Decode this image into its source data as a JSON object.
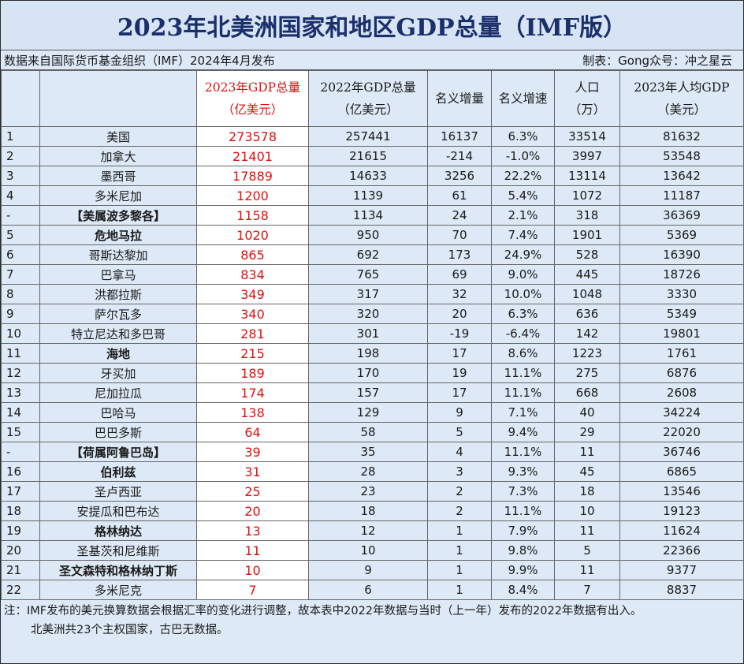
{
  "title": "2023年北美洲国家和地区GDP总量（IMF版）",
  "source": "数据来自国际货币基金组织（IMF）2024年4月发布",
  "credit": "制表：Gong众号：冲之星云",
  "headers": {
    "gdp2023_a": "2023年GDP总量",
    "gdp2023_b": "（亿美元）",
    "gdp2022_a": "2022年GDP总量",
    "gdp2022_b": "（亿美元）",
    "increase": "名义增量",
    "growth": "名义增速",
    "pop_a": "人口",
    "pop_b": "（万）",
    "percap_a": "2023年人均GDP",
    "percap_b": "（美元）"
  },
  "rows": [
    {
      "rank": "1",
      "name": "美国",
      "gdp2023": "273578",
      "gdp2022": "257441",
      "inc": "16137",
      "rate": "6.3%",
      "pop": "33514",
      "percap": "81632",
      "bold": false
    },
    {
      "rank": "2",
      "name": "加拿大",
      "gdp2023": "21401",
      "gdp2022": "21615",
      "inc": "-214",
      "rate": "-1.0%",
      "pop": "3997",
      "percap": "53548",
      "bold": false
    },
    {
      "rank": "3",
      "name": "墨西哥",
      "gdp2023": "17889",
      "gdp2022": "14633",
      "inc": "3256",
      "rate": "22.2%",
      "pop": "13114",
      "percap": "13642",
      "bold": false
    },
    {
      "rank": "4",
      "name": "多米尼加",
      "gdp2023": "1200",
      "gdp2022": "1139",
      "inc": "61",
      "rate": "5.4%",
      "pop": "1072",
      "percap": "11187",
      "bold": false
    },
    {
      "rank": "-",
      "name": "【美属波多黎各】",
      "gdp2023": "1158",
      "gdp2022": "1134",
      "inc": "24",
      "rate": "2.1%",
      "pop": "318",
      "percap": "36369",
      "bold": true
    },
    {
      "rank": "5",
      "name": "危地马拉",
      "gdp2023": "1020",
      "gdp2022": "950",
      "inc": "70",
      "rate": "7.4%",
      "pop": "1901",
      "percap": "5369",
      "bold": true
    },
    {
      "rank": "6",
      "name": "哥斯达黎加",
      "gdp2023": "865",
      "gdp2022": "692",
      "inc": "173",
      "rate": "24.9%",
      "pop": "528",
      "percap": "16390",
      "bold": false
    },
    {
      "rank": "7",
      "name": "巴拿马",
      "gdp2023": "834",
      "gdp2022": "765",
      "inc": "69",
      "rate": "9.0%",
      "pop": "445",
      "percap": "18726",
      "bold": false
    },
    {
      "rank": "8",
      "name": "洪都拉斯",
      "gdp2023": "349",
      "gdp2022": "317",
      "inc": "32",
      "rate": "10.0%",
      "pop": "1048",
      "percap": "3330",
      "bold": false
    },
    {
      "rank": "9",
      "name": "萨尔瓦多",
      "gdp2023": "340",
      "gdp2022": "320",
      "inc": "20",
      "rate": "6.3%",
      "pop": "636",
      "percap": "5349",
      "bold": false
    },
    {
      "rank": "10",
      "name": "特立尼达和多巴哥",
      "gdp2023": "281",
      "gdp2022": "301",
      "inc": "-19",
      "rate": "-6.4%",
      "pop": "142",
      "percap": "19801",
      "bold": false
    },
    {
      "rank": "11",
      "name": "海地",
      "gdp2023": "215",
      "gdp2022": "198",
      "inc": "17",
      "rate": "8.6%",
      "pop": "1223",
      "percap": "1761",
      "bold": true
    },
    {
      "rank": "12",
      "name": "牙买加",
      "gdp2023": "189",
      "gdp2022": "170",
      "inc": "19",
      "rate": "11.1%",
      "pop": "275",
      "percap": "6876",
      "bold": false
    },
    {
      "rank": "13",
      "name": "尼加拉瓜",
      "gdp2023": "174",
      "gdp2022": "157",
      "inc": "17",
      "rate": "11.1%",
      "pop": "668",
      "percap": "2608",
      "bold": false
    },
    {
      "rank": "14",
      "name": "巴哈马",
      "gdp2023": "138",
      "gdp2022": "129",
      "inc": "9",
      "rate": "7.1%",
      "pop": "40",
      "percap": "34224",
      "bold": false
    },
    {
      "rank": "15",
      "name": "巴巴多斯",
      "gdp2023": "64",
      "gdp2022": "58",
      "inc": "5",
      "rate": "9.4%",
      "pop": "29",
      "percap": "22020",
      "bold": false
    },
    {
      "rank": "-",
      "name": "【荷属阿鲁巴岛】",
      "gdp2023": "39",
      "gdp2022": "35",
      "inc": "4",
      "rate": "11.1%",
      "pop": "11",
      "percap": "36746",
      "bold": true
    },
    {
      "rank": "16",
      "name": "伯利兹",
      "gdp2023": "31",
      "gdp2022": "28",
      "inc": "3",
      "rate": "9.3%",
      "pop": "45",
      "percap": "6865",
      "bold": true
    },
    {
      "rank": "17",
      "name": "圣卢西亚",
      "gdp2023": "25",
      "gdp2022": "23",
      "inc": "2",
      "rate": "7.3%",
      "pop": "18",
      "percap": "13546",
      "bold": false
    },
    {
      "rank": "18",
      "name": "安提瓜和巴布达",
      "gdp2023": "20",
      "gdp2022": "18",
      "inc": "2",
      "rate": "11.1%",
      "pop": "10",
      "percap": "19123",
      "bold": false
    },
    {
      "rank": "19",
      "name": "格林纳达",
      "gdp2023": "13",
      "gdp2022": "12",
      "inc": "1",
      "rate": "7.9%",
      "pop": "11",
      "percap": "11624",
      "bold": true
    },
    {
      "rank": "20",
      "name": "圣基茨和尼维斯",
      "gdp2023": "11",
      "gdp2022": "10",
      "inc": "1",
      "rate": "9.8%",
      "pop": "5",
      "percap": "22366",
      "bold": false
    },
    {
      "rank": "21",
      "name": "圣文森特和格林纳丁斯",
      "gdp2023": "10",
      "gdp2022": "9",
      "inc": "1",
      "rate": "9.9%",
      "pop": "11",
      "percap": "9377",
      "bold": true
    },
    {
      "rank": "22",
      "name": "多米尼克",
      "gdp2023": "7",
      "gdp2022": "6",
      "inc": "1",
      "rate": "8.4%",
      "pop": "7",
      "percap": "8837",
      "bold": false
    }
  ],
  "notes": [
    "注：IMF发布的美元换算数据会根据汇率的变化进行调整，故本表中2022年数据与当时（上一年）发布的2022年数据有出入。",
    "北美洲共23个主权国家，古巴无数据。"
  ]
}
